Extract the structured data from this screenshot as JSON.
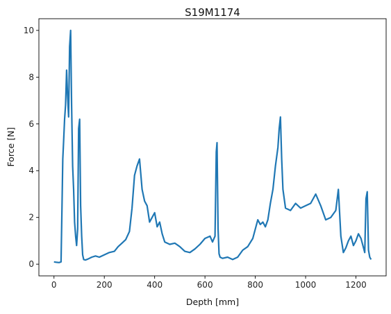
{
  "chart_data": {
    "type": "line",
    "title": "S19M1174",
    "xlabel": "Depth [mm]",
    "ylabel": "Force [N]",
    "xlim": [
      -60,
      1320
    ],
    "ylim": [
      -0.5,
      10.5
    ],
    "xticks": [
      0,
      200,
      400,
      600,
      800,
      1000,
      1200
    ],
    "yticks": [
      0,
      2,
      4,
      6,
      8,
      10
    ],
    "grid": false,
    "legend": "none",
    "series": [
      {
        "color": "#1f77b4",
        "x": [
          0,
          10,
          20,
          28,
          32,
          35,
          38,
          42,
          46,
          50,
          54,
          58,
          62,
          66,
          70,
          74,
          78,
          82,
          86,
          90,
          94,
          98,
          102,
          106,
          110,
          114,
          118,
          125,
          135,
          150,
          165,
          180,
          200,
          220,
          240,
          255,
          270,
          285,
          300,
          310,
          320,
          330,
          340,
          350,
          360,
          370,
          380,
          390,
          400,
          410,
          420,
          430,
          440,
          460,
          480,
          500,
          520,
          540,
          560,
          580,
          600,
          620,
          630,
          640,
          645,
          648,
          652,
          656,
          660,
          670,
          690,
          710,
          730,
          750,
          770,
          790,
          800,
          810,
          820,
          830,
          840,
          850,
          860,
          870,
          880,
          890,
          895,
          900,
          905,
          910,
          920,
          940,
          960,
          980,
          1000,
          1020,
          1040,
          1060,
          1080,
          1100,
          1120,
          1130,
          1140,
          1150,
          1160,
          1170,
          1180,
          1190,
          1200,
          1210,
          1220,
          1230,
          1235,
          1240,
          1245,
          1250,
          1255,
          1260
        ],
        "y": [
          0.1,
          0.08,
          0.07,
          0.1,
          2.5,
          4.5,
          5.2,
          6.2,
          6.8,
          8.3,
          7.2,
          6.3,
          9.3,
          10.0,
          6.8,
          4.2,
          3.2,
          1.8,
          1.2,
          0.8,
          1.5,
          5.8,
          6.2,
          2.5,
          1.2,
          0.4,
          0.2,
          0.18,
          0.22,
          0.3,
          0.35,
          0.3,
          0.4,
          0.5,
          0.55,
          0.75,
          0.9,
          1.05,
          1.4,
          2.4,
          3.8,
          4.2,
          4.5,
          3.2,
          2.7,
          2.5,
          1.8,
          2.0,
          2.2,
          1.6,
          1.8,
          1.3,
          0.95,
          0.85,
          0.9,
          0.75,
          0.55,
          0.5,
          0.65,
          0.85,
          1.1,
          1.2,
          0.95,
          1.2,
          4.8,
          5.2,
          1.5,
          0.45,
          0.3,
          0.25,
          0.3,
          0.2,
          0.3,
          0.6,
          0.75,
          1.1,
          1.5,
          1.9,
          1.7,
          1.8,
          1.6,
          1.9,
          2.6,
          3.2,
          4.2,
          5.0,
          5.8,
          6.3,
          4.5,
          3.2,
          2.4,
          2.3,
          2.6,
          2.4,
          2.5,
          2.6,
          3.0,
          2.5,
          1.9,
          2.0,
          2.3,
          3.2,
          1.2,
          0.5,
          0.7,
          1.0,
          1.2,
          0.8,
          1.0,
          1.3,
          1.1,
          0.7,
          0.5,
          2.8,
          3.1,
          0.6,
          0.3,
          0.2
        ]
      }
    ]
  }
}
